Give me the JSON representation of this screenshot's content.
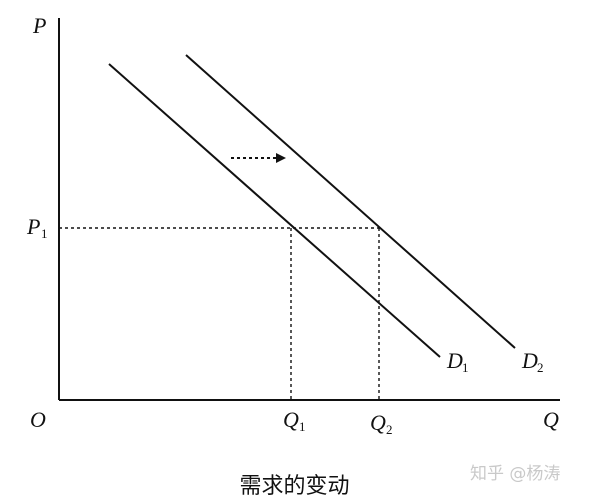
{
  "labels": {
    "price_axis": "P",
    "quantity_axis": "Q",
    "origin": "O",
    "price_level": "P",
    "price_level_sub": "1",
    "q1": "Q",
    "q1_sub": "1",
    "q2": "Q",
    "q2_sub": "2",
    "demand_1": "D",
    "demand_1_sub": "1",
    "demand_2": "D",
    "demand_2_sub": "2"
  },
  "caption": "需求的变动",
  "watermark": "知乎 @杨涛",
  "colors": {
    "ink": "#111111",
    "watermark": "#c9c9c9"
  }
}
